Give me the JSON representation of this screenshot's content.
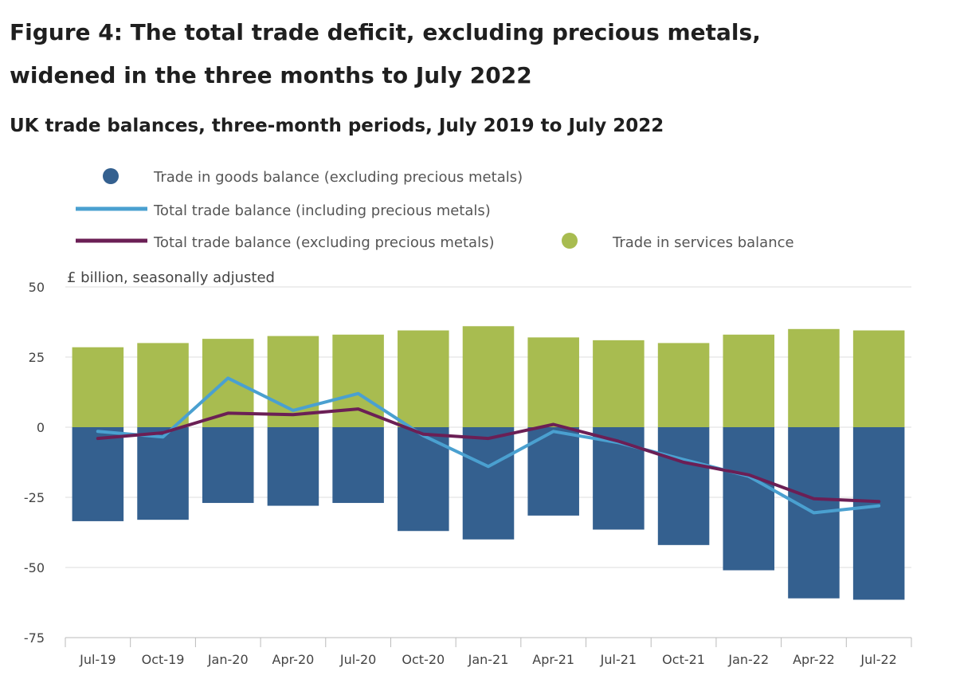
{
  "figure": {
    "title_line1": "Figure 4: The total trade deficit, excluding precious metals,",
    "title_line2": "widened in the three months to July 2022",
    "subtitle": "UK trade balances, three-month periods, July 2019 to July 2022"
  },
  "colors": {
    "goods": "#34608f",
    "services": "#a8bc50",
    "total_including": "#4aa0d0",
    "total_excluding": "#6b1f55",
    "grid": "#dddddd",
    "axis": "#bbbbbb"
  },
  "chart_data": {
    "type": "bar",
    "ylabel": "£ billion, seasonally adjusted",
    "ylim": [
      -75,
      50
    ],
    "yticks": [
      50,
      25,
      0,
      -25,
      -50,
      -75
    ],
    "grid": true,
    "legend_position": "top",
    "categories": [
      "Jul-19",
      "Oct-19",
      "Jan-20",
      "Apr-20",
      "Jul-20",
      "Oct-20",
      "Jan-21",
      "Apr-21",
      "Jul-21",
      "Oct-21",
      "Jan-22",
      "Apr-22",
      "Jul-22"
    ],
    "series": [
      {
        "name": "Trade in goods balance (excluding precious metals)",
        "type": "bar",
        "values": [
          -33.5,
          -33,
          -27,
          -28,
          -27,
          -37,
          -40,
          -31.5,
          -36.5,
          -42,
          -51,
          -61,
          -61.5
        ]
      },
      {
        "name": "Trade in services balance",
        "type": "bar",
        "values": [
          28.5,
          30,
          31.5,
          32.5,
          33,
          34.5,
          36,
          32,
          31,
          30,
          33,
          35,
          34.5
        ]
      },
      {
        "name": "Total trade balance (including precious metals)",
        "type": "line",
        "values": [
          -1.5,
          -3.5,
          17.5,
          6,
          12,
          -3,
          -14,
          -1.5,
          -5.5,
          -11.5,
          -17.5,
          -30.5,
          -28
        ]
      },
      {
        "name": "Total trade balance (excluding precious metals)",
        "type": "line",
        "values": [
          -4,
          -2,
          5,
          4.5,
          6.5,
          -2.5,
          -4,
          1,
          -5,
          -12.5,
          -17,
          -25.5,
          -26.5
        ]
      }
    ]
  }
}
